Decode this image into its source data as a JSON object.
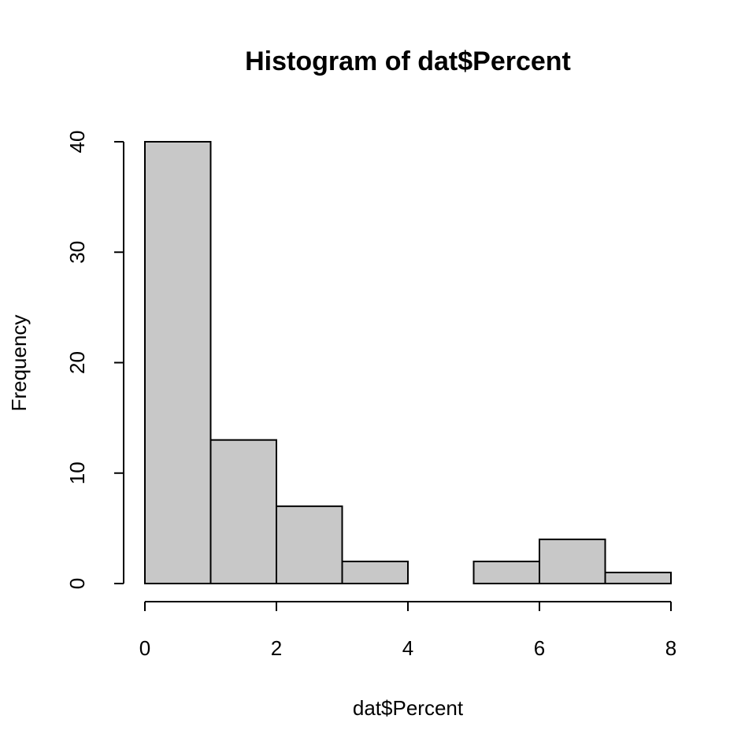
{
  "chart_data": {
    "type": "histogram",
    "title": "Histogram of dat$Percent",
    "x_label": "dat$Percent",
    "y_label": "Frequency",
    "bins": [
      0,
      1,
      2,
      3,
      4,
      5,
      6,
      7,
      8
    ],
    "values": [
      40,
      13,
      7,
      2,
      0,
      2,
      4,
      1
    ],
    "color": "#c8c8c8",
    "xlim": [
      0,
      8
    ],
    "ylim": [
      0,
      40
    ],
    "xticks": [
      0,
      2,
      4,
      6,
      8
    ],
    "yticks": [
      0,
      10,
      20,
      30,
      40
    ]
  }
}
